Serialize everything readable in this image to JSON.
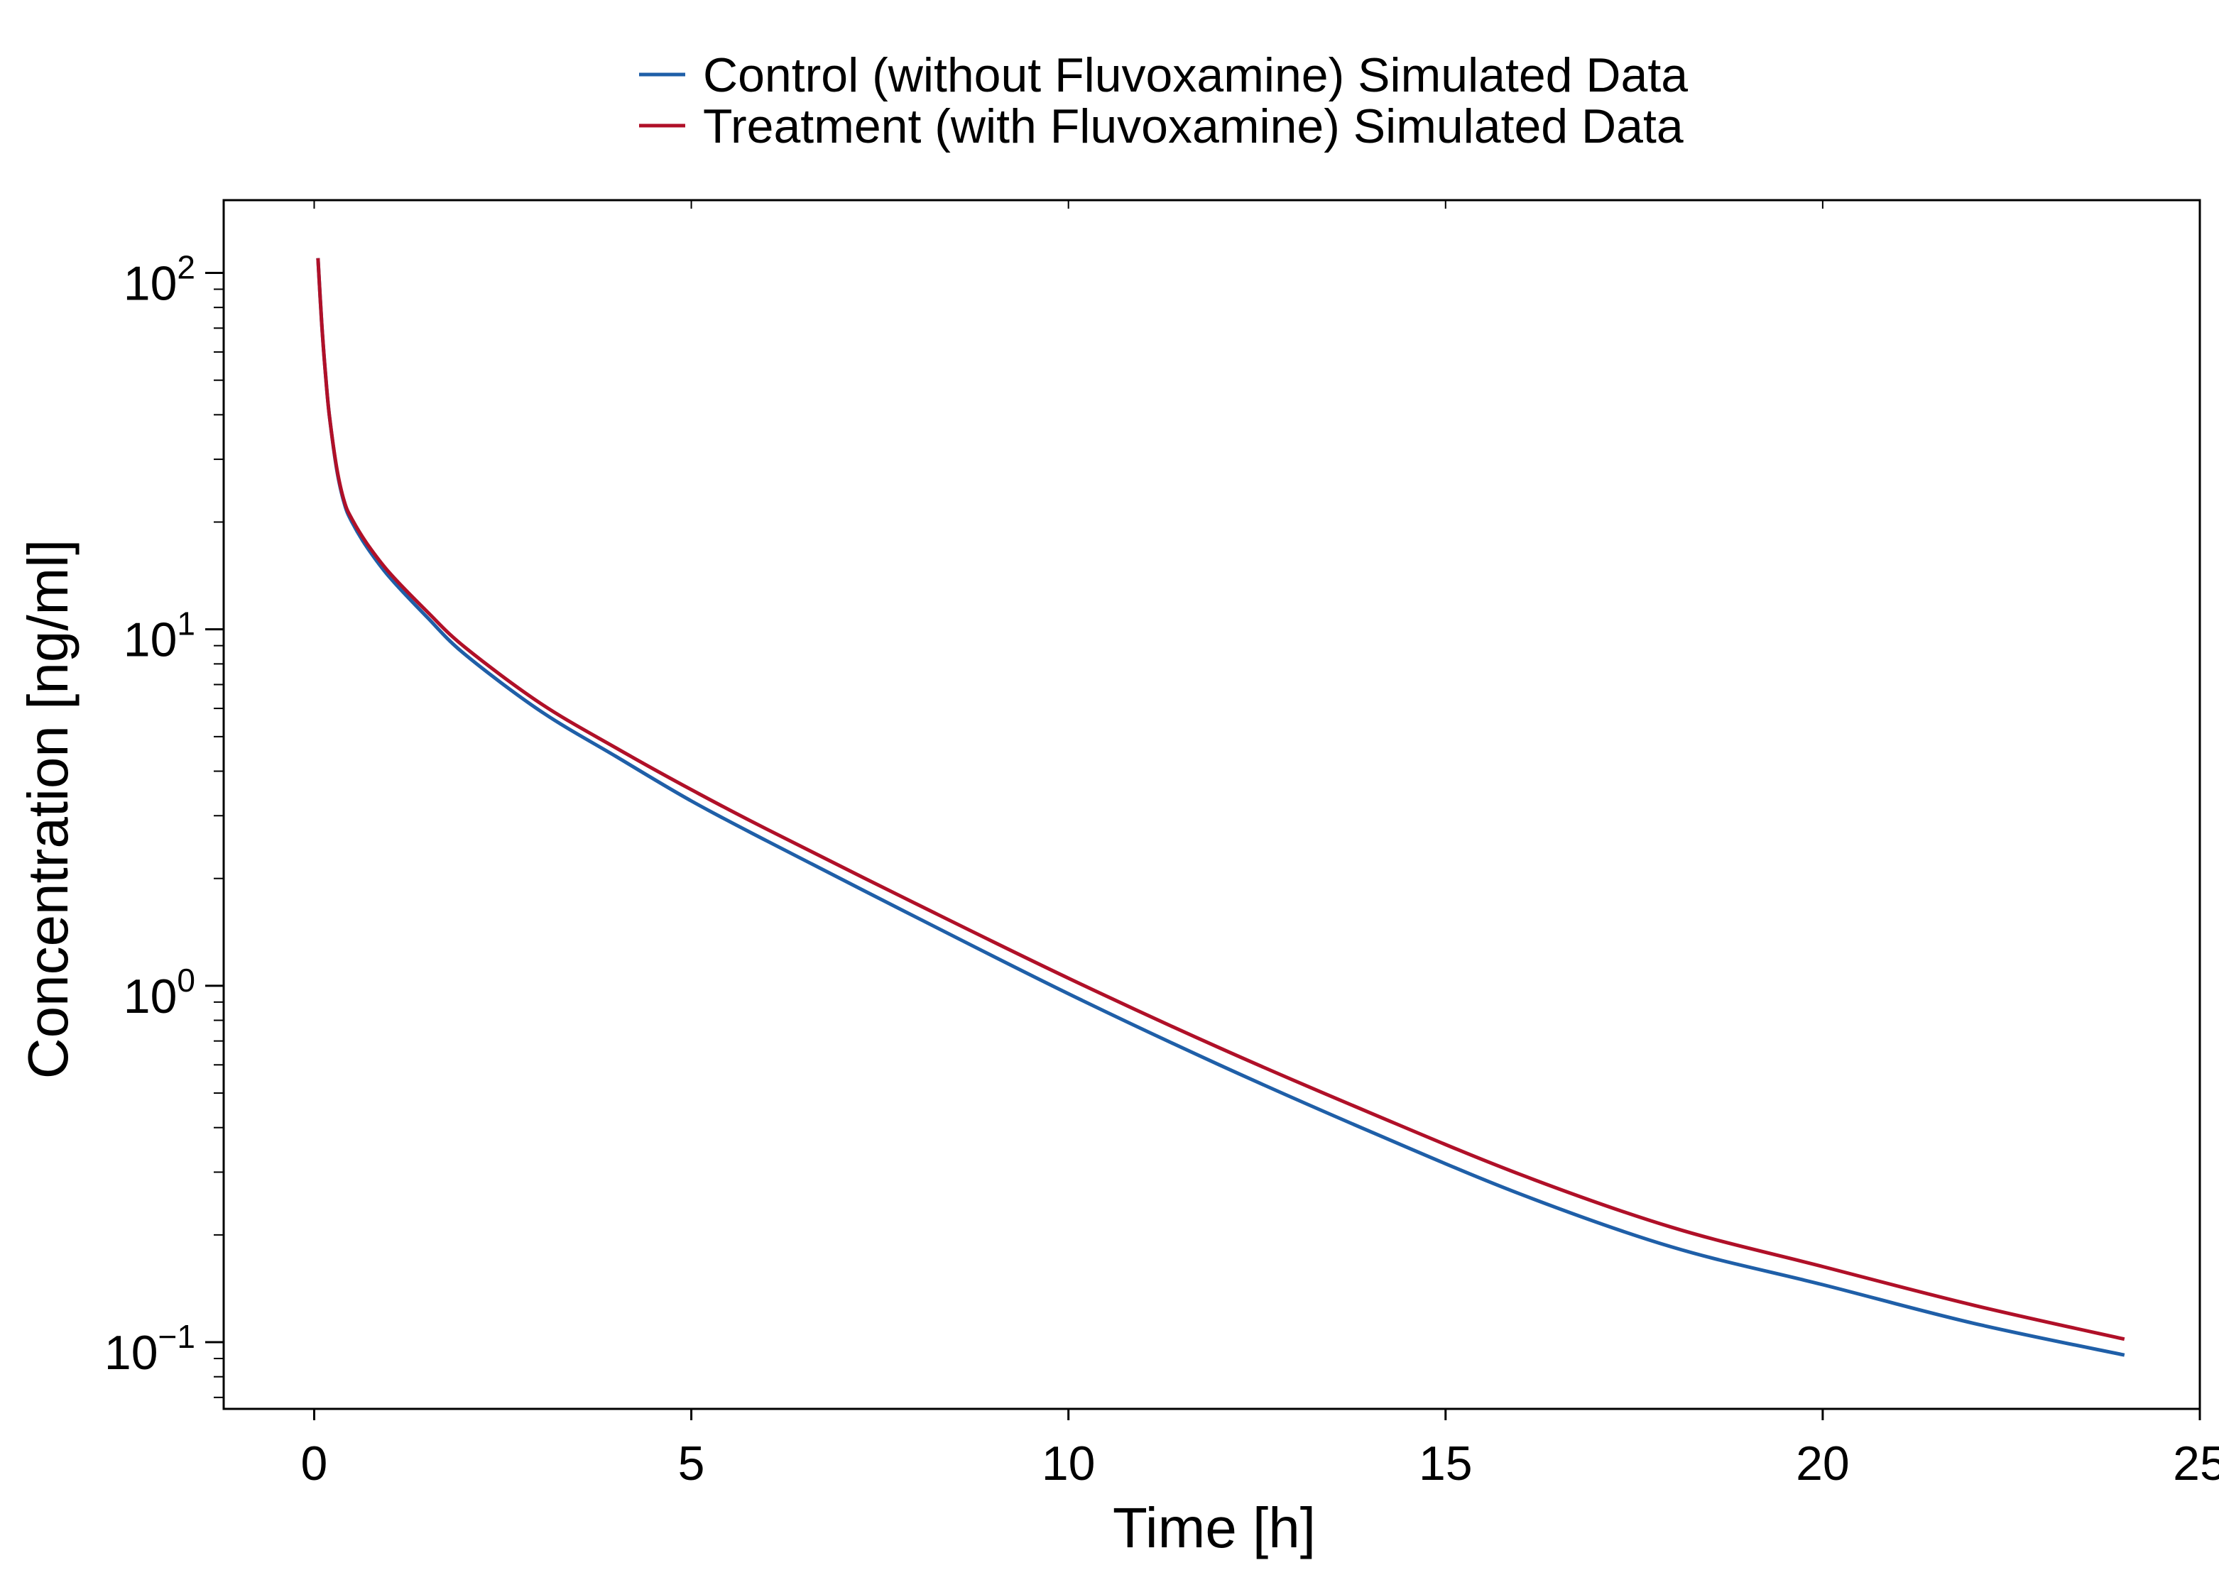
{
  "chart_data": {
    "type": "line",
    "title": "",
    "xlabel": "Time [h]",
    "ylabel": "Concentration [ng/ml]",
    "xscale": "linear",
    "yscale": "log",
    "xlim": [
      -1.2,
      25.0
    ],
    "ylim": [
      0.065,
      160
    ],
    "xticks": [
      0,
      5,
      10,
      15,
      20,
      25
    ],
    "xtick_labels": [
      "0",
      "5",
      "10",
      "15",
      "20",
      "25"
    ],
    "yticks": [
      {
        "value": 100,
        "base": "10",
        "exp": "2"
      },
      {
        "value": 10,
        "base": "10",
        "exp": "1"
      },
      {
        "value": 1,
        "base": "10",
        "exp": "0"
      },
      {
        "value": 0.1,
        "base": "10",
        "exp": "−1"
      }
    ],
    "grid": false,
    "legend_position": "top-center",
    "series": [
      {
        "name": "Control (without Fluvoxamine) Simulated Data",
        "color": "#1f5fa8",
        "x": [
          0.05,
          0.1,
          0.15,
          0.2,
          0.3,
          0.4,
          0.5,
          0.7,
          1,
          1.5,
          2,
          3,
          4,
          5,
          6,
          8,
          10,
          12,
          14,
          16,
          18,
          20,
          22,
          24
        ],
        "y": [
          110,
          72,
          52,
          40,
          28,
          22.5,
          20,
          17,
          14,
          10.8,
          8.5,
          5.9,
          4.4,
          3.3,
          2.55,
          1.55,
          0.95,
          0.6,
          0.39,
          0.26,
          0.185,
          0.145,
          0.113,
          0.092
        ]
      },
      {
        "name": "Treatment (with Fluvoxamine) Simulated Data",
        "color": "#b01028",
        "x": [
          0.05,
          0.1,
          0.15,
          0.2,
          0.3,
          0.4,
          0.5,
          0.7,
          1,
          1.5,
          2,
          3,
          4,
          5,
          6,
          8,
          10,
          12,
          14,
          16,
          18,
          20,
          22,
          24
        ],
        "y": [
          110,
          72,
          52,
          40,
          28.3,
          22.8,
          20.4,
          17.4,
          14.4,
          11.2,
          8.9,
          6.2,
          4.65,
          3.55,
          2.75,
          1.69,
          1.05,
          0.67,
          0.44,
          0.295,
          0.21,
          0.163,
          0.127,
          0.102
        ]
      }
    ]
  }
}
